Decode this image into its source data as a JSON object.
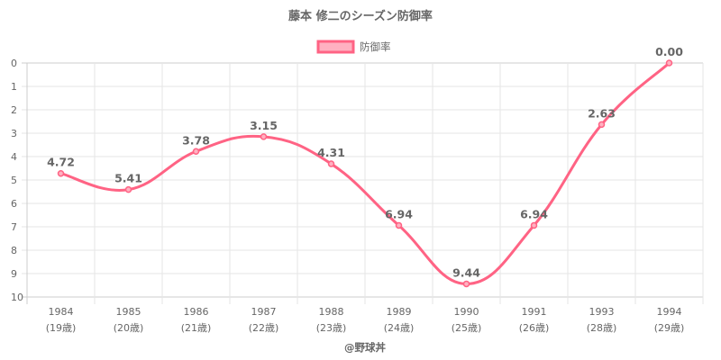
{
  "chart_data": {
    "type": "line",
    "title": "藤本 修二のシーズン防御率",
    "legend": {
      "label": "防御率",
      "position": "top"
    },
    "categories": [
      "1984",
      "1985",
      "1986",
      "1987",
      "1988",
      "1989",
      "1990",
      "1991",
      "1993",
      "1994"
    ],
    "sublabels": [
      "(19歳)",
      "(20歳)",
      "(21歳)",
      "(22歳)",
      "(23歳)",
      "(24歳)",
      "(25歳)",
      "(26歳)",
      "(28歳)",
      "(29歳)"
    ],
    "series": [
      {
        "name": "防御率",
        "values": [
          4.72,
          5.41,
          3.78,
          3.15,
          4.31,
          6.94,
          9.44,
          6.94,
          2.63,
          0.0
        ],
        "labels": [
          "4.72",
          "5.41",
          "3.78",
          "3.15",
          "4.31",
          "6.94",
          "9.44",
          "6.94",
          "2.63",
          "0.00"
        ]
      }
    ],
    "ylim": [
      0,
      10
    ],
    "y_reversed": true,
    "yticks": [
      "0",
      "1",
      "2",
      "3",
      "4",
      "5",
      "6",
      "7",
      "8",
      "9",
      "10"
    ],
    "grid": true,
    "credit": "@野球丼",
    "colors": {
      "line": "#ff6384",
      "fill": "#ffb1c1"
    }
  }
}
